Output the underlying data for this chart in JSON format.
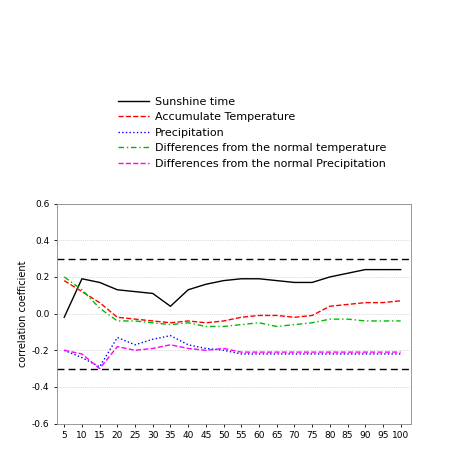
{
  "x": [
    5,
    10,
    15,
    20,
    25,
    30,
    35,
    40,
    45,
    50,
    55,
    60,
    65,
    70,
    75,
    80,
    85,
    90,
    95,
    100
  ],
  "sunshine": [
    -0.02,
    0.19,
    0.17,
    0.13,
    0.12,
    0.11,
    0.04,
    0.13,
    0.16,
    0.18,
    0.19,
    0.19,
    0.18,
    0.17,
    0.17,
    0.2,
    0.22,
    0.24,
    0.24,
    0.24
  ],
  "acc_temp": [
    0.18,
    0.12,
    0.06,
    -0.02,
    -0.03,
    -0.04,
    -0.05,
    -0.04,
    -0.05,
    -0.04,
    -0.02,
    -0.01,
    -0.01,
    -0.02,
    -0.01,
    0.04,
    0.05,
    0.06,
    0.06,
    0.07
  ],
  "precipitation": [
    -0.2,
    -0.24,
    -0.29,
    -0.13,
    -0.17,
    -0.14,
    -0.12,
    -0.17,
    -0.19,
    -0.2,
    -0.22,
    -0.22,
    -0.22,
    -0.22,
    -0.22,
    -0.22,
    -0.22,
    -0.22,
    -0.22,
    -0.22
  ],
  "diff_temp": [
    0.2,
    0.13,
    0.03,
    -0.04,
    -0.04,
    -0.05,
    -0.06,
    -0.05,
    -0.07,
    -0.07,
    -0.06,
    -0.05,
    -0.07,
    -0.06,
    -0.05,
    -0.03,
    -0.03,
    -0.04,
    -0.04,
    -0.04
  ],
  "diff_precip": [
    -0.2,
    -0.22,
    -0.3,
    -0.18,
    -0.2,
    -0.19,
    -0.17,
    -0.19,
    -0.2,
    -0.19,
    -0.21,
    -0.21,
    -0.21,
    -0.21,
    -0.21,
    -0.21,
    -0.21,
    -0.21,
    -0.21,
    -0.21
  ],
  "sunshine_color": "#000000",
  "acc_temp_color": "#FF0000",
  "precip_color": "#0000FF",
  "diff_temp_color": "#00BB00",
  "diff_precip_color": "#FF00FF",
  "hline_y": [
    0.3,
    -0.3
  ],
  "ylabel": "correlation coefficient",
  "ylim": [
    -0.6,
    0.6
  ],
  "yticks": [
    -0.6,
    -0.4,
    -0.2,
    0.0,
    0.2,
    0.4,
    0.6
  ],
  "ytick_labels": [
    "-0.6",
    "-0.4",
    "-0.2",
    "0.0",
    "0.2",
    "0.4",
    "0.6"
  ],
  "grid_color": "#BBBBBB",
  "legend_labels": [
    "Sunshine time",
    "Accumulate Temperature",
    "Precipitation",
    "Differences from the normal temperature",
    "Differences from the normal Precipitation"
  ]
}
